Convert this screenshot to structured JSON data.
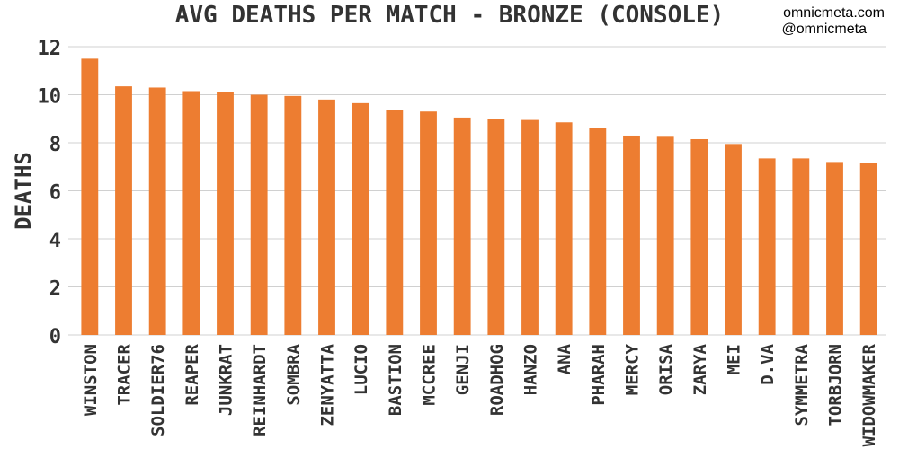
{
  "header": {
    "title": "AVG DEATHS PER MATCH - BRONZE (CONSOLE)",
    "credit_site": "omnicmeta.com",
    "credit_handle": "@omnicmeta"
  },
  "colors": {
    "bar": "#ED7D31",
    "grid": "#D0D0D0",
    "text": "#333333"
  },
  "chart_data": {
    "type": "bar",
    "title": "AVG DEATHS PER MATCH - BRONZE (CONSOLE)",
    "xlabel": "",
    "ylabel": "DEATHS",
    "ylim": [
      0,
      12
    ],
    "yticks": [
      0,
      2,
      4,
      6,
      8,
      10,
      12
    ],
    "grid": true,
    "categories": [
      "WINSTON",
      "TRACER",
      "SOLDIER76",
      "REAPER",
      "JUNKRAT",
      "REINHARDT",
      "SOMBRA",
      "ZENYATTA",
      "LUCIO",
      "BASTION",
      "MCCREE",
      "GENJI",
      "ROADHOG",
      "HANZO",
      "ANA",
      "PHARAH",
      "MERCY",
      "ORISA",
      "ZARYA",
      "MEI",
      "D.VA",
      "SYMMETRA",
      "TORBJORN",
      "WIDOWMAKER"
    ],
    "values": [
      11.5,
      10.35,
      10.3,
      10.15,
      10.1,
      10.0,
      9.95,
      9.8,
      9.65,
      9.35,
      9.3,
      9.05,
      9.0,
      8.95,
      8.85,
      8.6,
      8.3,
      8.25,
      8.15,
      7.95,
      7.35,
      7.35,
      7.2,
      7.15
    ]
  }
}
